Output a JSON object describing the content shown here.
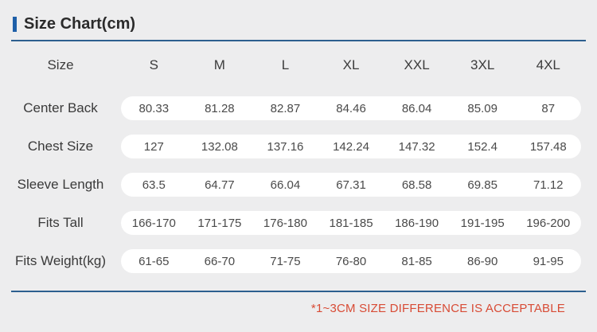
{
  "page": {
    "title": "Size Chart(cm)",
    "footer_note": "*1~3CM SIZE DIFFERENCE IS ACCEPTABLE"
  },
  "colors": {
    "background": "#ededee",
    "accent_blue": "#1e5fa8",
    "divider_blue": "#2d5f8f",
    "pill_white": "#ffffff",
    "note_red": "#d84b35",
    "text_dark": "#3a3a3a"
  },
  "chart_data": {
    "type": "table",
    "title": "Size Chart(cm)",
    "unit": "cm",
    "columns": [
      "Size",
      "S",
      "M",
      "L",
      "XL",
      "XXL",
      "3XL",
      "4XL"
    ],
    "rows": [
      {
        "label": "Center Back",
        "values": [
          "80.33",
          "81.28",
          "82.87",
          "84.46",
          "86.04",
          "85.09",
          "87"
        ]
      },
      {
        "label": "Chest Size",
        "values": [
          "127",
          "132.08",
          "137.16",
          "142.24",
          "147.32",
          "152.4",
          "157.48"
        ]
      },
      {
        "label": "Sleeve Length",
        "values": [
          "63.5",
          "64.77",
          "66.04",
          "67.31",
          "68.58",
          "69.85",
          "71.12"
        ]
      },
      {
        "label": "Fits Tall",
        "values": [
          "166-170",
          "171-175",
          "176-180",
          "181-185",
          "186-190",
          "191-195",
          "196-200"
        ]
      },
      {
        "label": "Fits Weight(kg)",
        "values": [
          "61-65",
          "66-70",
          "71-75",
          "76-80",
          "81-85",
          "86-90",
          "91-95"
        ]
      }
    ],
    "annotation": "*1~3CM SIZE DIFFERENCE IS ACCEPTABLE",
    "layout_hints": {
      "grid": false,
      "row_background": "white rounded pill",
      "note_position": "bottom-right"
    }
  }
}
